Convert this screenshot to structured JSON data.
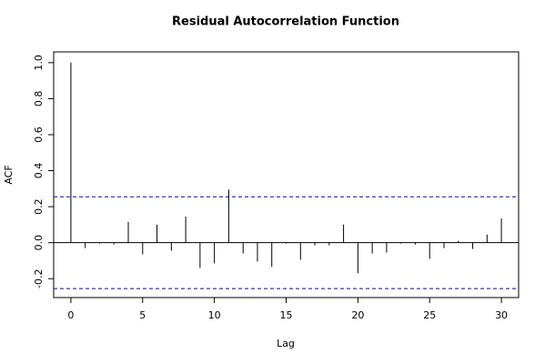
{
  "chart_data": {
    "type": "acf",
    "title": "Residual Autocorrelation Function",
    "x_label": "Lag",
    "y_label": "ACF",
    "x": [
      0,
      1,
      2,
      3,
      4,
      5,
      6,
      7,
      8,
      9,
      10,
      11,
      12,
      13,
      14,
      15,
      16,
      17,
      18,
      19,
      20,
      21,
      22,
      23,
      24,
      25,
      26,
      27,
      28,
      29,
      30
    ],
    "values": [
      1.0,
      -0.03,
      -0.005,
      -0.01,
      0.115,
      -0.065,
      0.1,
      -0.045,
      0.145,
      -0.14,
      -0.115,
      0.295,
      -0.06,
      -0.105,
      -0.135,
      -0.005,
      -0.095,
      -0.015,
      -0.015,
      0.1,
      -0.17,
      -0.06,
      -0.055,
      -0.005,
      -0.01,
      -0.09,
      -0.03,
      0.01,
      -0.035,
      0.045,
      0.135
    ],
    "color": "#000000",
    "conf_limits": [
      0.255,
      -0.255
    ],
    "conf_color": "#0000cc",
    "xlim": [
      -1.2,
      31.2
    ],
    "ylim": [
      -0.305,
      1.06
    ],
    "xticks": [
      0,
      5,
      10,
      15,
      20,
      25,
      30
    ],
    "yticks": [
      {
        "value": -0.2,
        "label": "-0.2"
      },
      {
        "value": 0,
        "label": "0.0"
      },
      {
        "value": 0.2,
        "label": "0.2"
      },
      {
        "value": 0.4,
        "label": "0.4"
      },
      {
        "value": 0.6,
        "label": "0.6"
      },
      {
        "value": 0.8,
        "label": "0.8"
      },
      {
        "value": 1.0,
        "label": "1.0"
      }
    ]
  }
}
